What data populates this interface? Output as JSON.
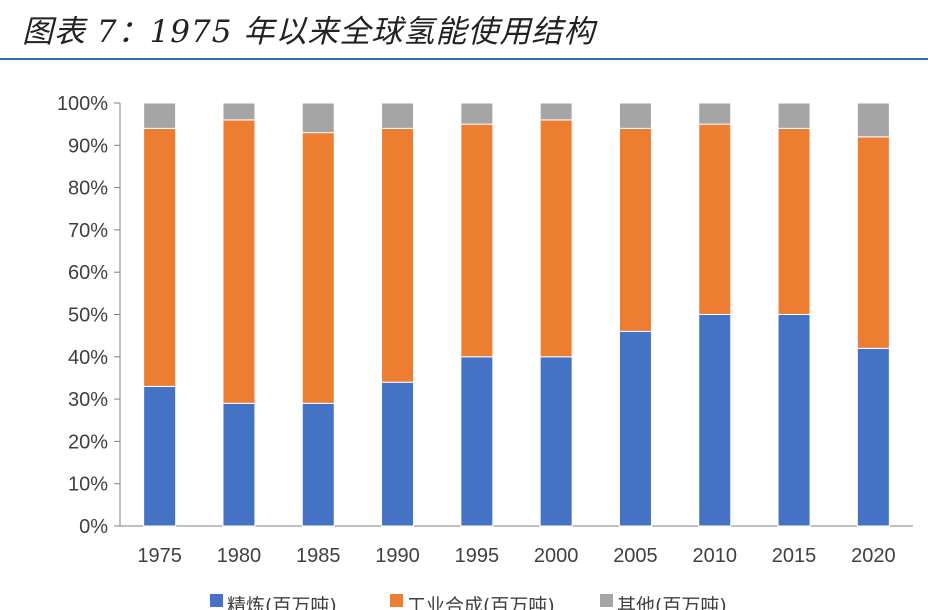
{
  "title": "图表 7：1975 年以来全球氢能使用结构",
  "colors": {
    "refining": "#4472c4",
    "industrial": "#ed7d31",
    "other": "#a5a5a5",
    "title_rule": "#2e6fb4"
  },
  "chart_data": {
    "type": "bar",
    "stacked": true,
    "percent": true,
    "categories": [
      "1975",
      "1980",
      "1985",
      "1990",
      "1995",
      "2000",
      "2005",
      "2010",
      "2015",
      "2020"
    ],
    "series": [
      {
        "name": "精炼(百万吨)",
        "color": "#4472c4",
        "values": [
          33,
          29,
          29,
          34,
          40,
          40,
          46,
          50,
          50,
          42
        ]
      },
      {
        "name": "工业合成(百万吨)",
        "color": "#ed7d31",
        "values": [
          61,
          67,
          64,
          60,
          55,
          56,
          48,
          45,
          44,
          50
        ]
      },
      {
        "name": "其他(百万吨)",
        "color": "#a5a5a5",
        "values": [
          6,
          4,
          7,
          6,
          5,
          4,
          6,
          5,
          6,
          8
        ]
      }
    ],
    "y_ticks": [
      "0%",
      "10%",
      "20%",
      "30%",
      "40%",
      "50%",
      "60%",
      "70%",
      "80%",
      "90%",
      "100%"
    ],
    "ylim": [
      0,
      100
    ],
    "grid": false,
    "legend_position": "bottom"
  }
}
